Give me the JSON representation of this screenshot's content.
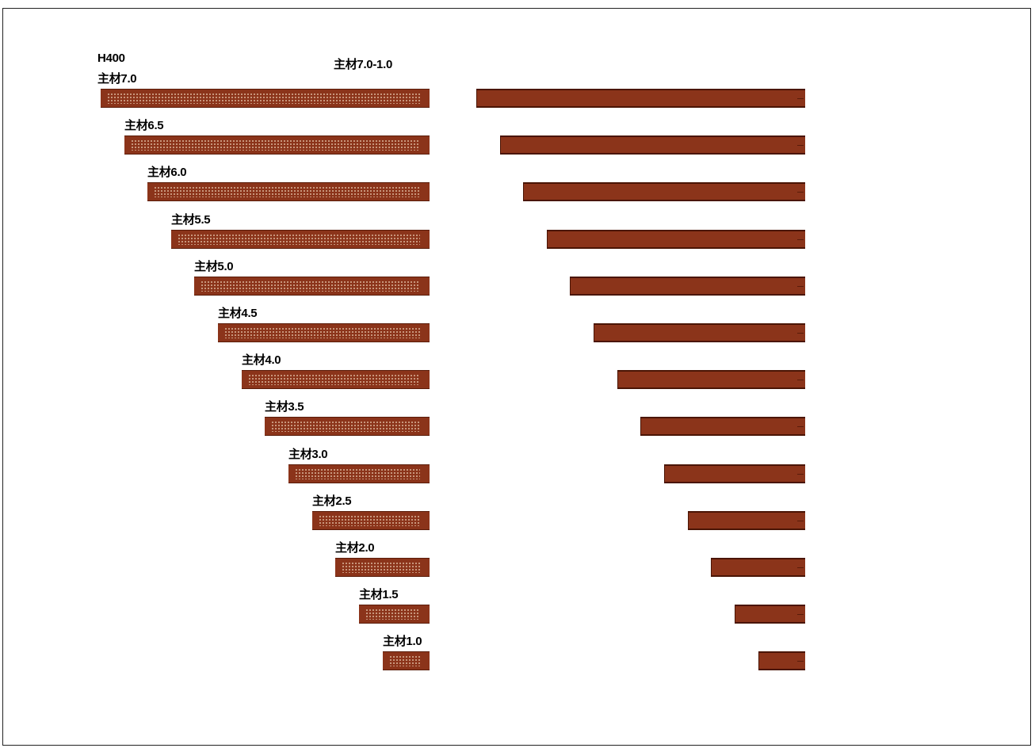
{
  "title_line1": "H400",
  "right_title": "主材7.0-1.0",
  "colors": {
    "bar": "#8B341A",
    "bar_edge": "#4a1505",
    "hole": "#e8c9b0"
  },
  "members": [
    {
      "label": "主材7.0",
      "length": 7.0
    },
    {
      "label": "主材6.5",
      "length": 6.5
    },
    {
      "label": "主材6.0",
      "length": 6.0
    },
    {
      "label": "主材5.5",
      "length": 5.5
    },
    {
      "label": "主材5.0",
      "length": 5.0
    },
    {
      "label": "主材4.5",
      "length": 4.5
    },
    {
      "label": "主材4.0",
      "length": 4.0
    },
    {
      "label": "主材3.5",
      "length": 3.5
    },
    {
      "label": "主材3.0",
      "length": 3.0
    },
    {
      "label": "主材2.5",
      "length": 2.5
    },
    {
      "label": "主材2.0",
      "length": 2.0
    },
    {
      "label": "主材1.5",
      "length": 1.5
    },
    {
      "label": "主材1.0",
      "length": 1.0
    }
  ]
}
